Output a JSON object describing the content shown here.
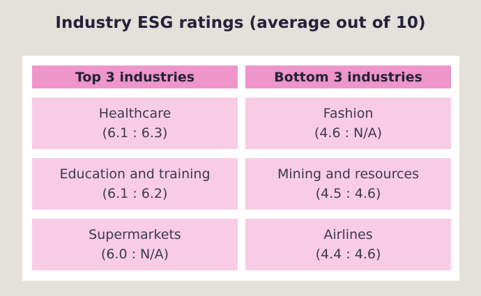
{
  "chart_data": {
    "type": "table",
    "title": "Industry ESG ratings (average out of 10)",
    "columns": [
      "Top 3 industries",
      "Bottom 3 industries"
    ],
    "rows": [
      [
        {
          "industry": "Healthcare",
          "rating": "(6.1 : 6.3)"
        },
        {
          "industry": "Fashion",
          "rating": "(4.6 : N/A)"
        }
      ],
      [
        {
          "industry": "Education and training",
          "rating": "(6.1 : 6.2)"
        },
        {
          "industry": "Mining and resources",
          "rating": "(4.5 : 4.6)"
        }
      ],
      [
        {
          "industry": "Supermarkets",
          "rating": "(6.0 : N/A)"
        },
        {
          "industry": "Airlines",
          "rating": "(4.4 : 4.6)"
        }
      ]
    ]
  },
  "colors": {
    "background": "#e4e0da",
    "panel": "#ffffff",
    "header_fill": "#ee95cb",
    "cell_fill": "#f9cce6",
    "title_text": "#24223a"
  }
}
